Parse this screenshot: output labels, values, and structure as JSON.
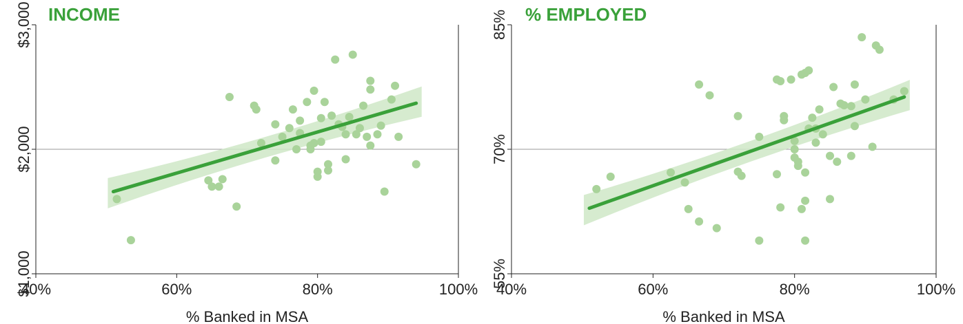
{
  "colors": {
    "accent": "#3aa13a",
    "points": "#a9d39a",
    "band": "#cfe7c7",
    "axis": "#222222",
    "refline": "#999999"
  },
  "chart_data": [
    {
      "type": "scatter",
      "title": "INCOME",
      "xlabel": "% Banked in MSA",
      "ylabel": "",
      "xlim": [
        40,
        100
      ],
      "ylim": [
        1000,
        3000
      ],
      "x_ticks": [
        "40%",
        "60%",
        "80%",
        "100%"
      ],
      "x_tick_values": [
        40,
        60,
        80,
        100
      ],
      "y_ticks": [
        "$1,000",
        "$2,000",
        "$3,000"
      ],
      "y_tick_values": [
        1000,
        2000,
        3000
      ],
      "reference_line_y": 2000,
      "grid": false,
      "trend": {
        "x": [
          51,
          94
        ],
        "y": [
          1660,
          2370
        ]
      },
      "points": [
        {
          "x": 51.5,
          "y": 1600
        },
        {
          "x": 53.5,
          "y": 1270
        },
        {
          "x": 64.5,
          "y": 1750
        },
        {
          "x": 65,
          "y": 1700
        },
        {
          "x": 66,
          "y": 1700
        },
        {
          "x": 66.5,
          "y": 1760
        },
        {
          "x": 67.5,
          "y": 2420
        },
        {
          "x": 68.5,
          "y": 1540
        },
        {
          "x": 71,
          "y": 2350
        },
        {
          "x": 71.3,
          "y": 2320
        },
        {
          "x": 72,
          "y": 2050
        },
        {
          "x": 74,
          "y": 1910
        },
        {
          "x": 74,
          "y": 2200
        },
        {
          "x": 75,
          "y": 2100
        },
        {
          "x": 76,
          "y": 2170
        },
        {
          "x": 76.5,
          "y": 2320
        },
        {
          "x": 77,
          "y": 2000
        },
        {
          "x": 77.5,
          "y": 2230
        },
        {
          "x": 77.5,
          "y": 2130
        },
        {
          "x": 78.5,
          "y": 2380
        },
        {
          "x": 79,
          "y": 2030
        },
        {
          "x": 79,
          "y": 2000
        },
        {
          "x": 79.5,
          "y": 2470
        },
        {
          "x": 79.5,
          "y": 2050
        },
        {
          "x": 80,
          "y": 1820
        },
        {
          "x": 80,
          "y": 1780
        },
        {
          "x": 80.5,
          "y": 2250
        },
        {
          "x": 80.5,
          "y": 2060
        },
        {
          "x": 81,
          "y": 2380
        },
        {
          "x": 81.5,
          "y": 1880
        },
        {
          "x": 81.5,
          "y": 1830
        },
        {
          "x": 82,
          "y": 2270
        },
        {
          "x": 82.5,
          "y": 2720
        },
        {
          "x": 83,
          "y": 2200
        },
        {
          "x": 83.5,
          "y": 2180
        },
        {
          "x": 84,
          "y": 1920
        },
        {
          "x": 84,
          "y": 2120
        },
        {
          "x": 84.5,
          "y": 2260
        },
        {
          "x": 85,
          "y": 2760
        },
        {
          "x": 85.5,
          "y": 2120
        },
        {
          "x": 86,
          "y": 2170
        },
        {
          "x": 86.5,
          "y": 2350
        },
        {
          "x": 87,
          "y": 2100
        },
        {
          "x": 87.5,
          "y": 2030
        },
        {
          "x": 87.5,
          "y": 2480
        },
        {
          "x": 87.5,
          "y": 2550
        },
        {
          "x": 88.5,
          "y": 2120
        },
        {
          "x": 89,
          "y": 2190
        },
        {
          "x": 89.5,
          "y": 1660
        },
        {
          "x": 90.5,
          "y": 2400
        },
        {
          "x": 91,
          "y": 2510
        },
        {
          "x": 91.5,
          "y": 2100
        },
        {
          "x": 94,
          "y": 1880
        }
      ]
    },
    {
      "type": "scatter",
      "title": "% EMPLOYED",
      "xlabel": "% Banked in MSA",
      "ylabel": "",
      "xlim": [
        40,
        100
      ],
      "ylim": [
        55,
        85
      ],
      "x_ticks": [
        "40%",
        "60%",
        "80%",
        "100%"
      ],
      "x_tick_values": [
        40,
        60,
        80,
        100
      ],
      "y_ticks": [
        "55%",
        "70%",
        "85%"
      ],
      "y_tick_values": [
        55,
        70,
        85
      ],
      "reference_line_y": 70,
      "grid": false,
      "trend": {
        "x": [
          51,
          95.5
        ],
        "y": [
          62.9,
          76.3
        ]
      },
      "points": [
        {
          "x": 52,
          "y": 65.2
        },
        {
          "x": 54,
          "y": 66.7
        },
        {
          "x": 62.5,
          "y": 67.2
        },
        {
          "x": 64.5,
          "y": 66.0
        },
        {
          "x": 65,
          "y": 62.8
        },
        {
          "x": 66.5,
          "y": 77.8
        },
        {
          "x": 66.5,
          "y": 61.3
        },
        {
          "x": 68,
          "y": 76.5
        },
        {
          "x": 69,
          "y": 60.5
        },
        {
          "x": 72,
          "y": 74.0
        },
        {
          "x": 72,
          "y": 67.3
        },
        {
          "x": 72.5,
          "y": 66.8
        },
        {
          "x": 75,
          "y": 59.0
        },
        {
          "x": 75,
          "y": 71.5
        },
        {
          "x": 77.5,
          "y": 67.0
        },
        {
          "x": 77.5,
          "y": 78.4
        },
        {
          "x": 78,
          "y": 63.0
        },
        {
          "x": 78,
          "y": 78.2
        },
        {
          "x": 78.5,
          "y": 74.0
        },
        {
          "x": 78.5,
          "y": 73.5
        },
        {
          "x": 79.5,
          "y": 78.4
        },
        {
          "x": 80,
          "y": 70.0
        },
        {
          "x": 80,
          "y": 71.0
        },
        {
          "x": 80,
          "y": 69.0
        },
        {
          "x": 80.5,
          "y": 68.0
        },
        {
          "x": 80.5,
          "y": 68.5
        },
        {
          "x": 81,
          "y": 79.0
        },
        {
          "x": 81,
          "y": 62.8
        },
        {
          "x": 81.5,
          "y": 59.0
        },
        {
          "x": 81.5,
          "y": 63.8
        },
        {
          "x": 81.5,
          "y": 79.2
        },
        {
          "x": 81.5,
          "y": 67.2
        },
        {
          "x": 82,
          "y": 72.5
        },
        {
          "x": 82,
          "y": 79.5
        },
        {
          "x": 82.5,
          "y": 73.8
        },
        {
          "x": 83,
          "y": 70.8
        },
        {
          "x": 83,
          "y": 72.5
        },
        {
          "x": 83.5,
          "y": 74.8
        },
        {
          "x": 84,
          "y": 71.8
        },
        {
          "x": 85,
          "y": 64.0
        },
        {
          "x": 85,
          "y": 69.2
        },
        {
          "x": 85.5,
          "y": 77.5
        },
        {
          "x": 86,
          "y": 68.5
        },
        {
          "x": 86.5,
          "y": 75.5
        },
        {
          "x": 87,
          "y": 75.3
        },
        {
          "x": 88,
          "y": 69.2
        },
        {
          "x": 88,
          "y": 75.2
        },
        {
          "x": 88.5,
          "y": 77.8
        },
        {
          "x": 88.5,
          "y": 72.8
        },
        {
          "x": 89.5,
          "y": 83.5
        },
        {
          "x": 90,
          "y": 76.0
        },
        {
          "x": 91,
          "y": 70.3
        },
        {
          "x": 91.5,
          "y": 82.5
        },
        {
          "x": 92,
          "y": 82.0
        },
        {
          "x": 94,
          "y": 76.0
        },
        {
          "x": 95.5,
          "y": 77.0
        }
      ]
    }
  ]
}
